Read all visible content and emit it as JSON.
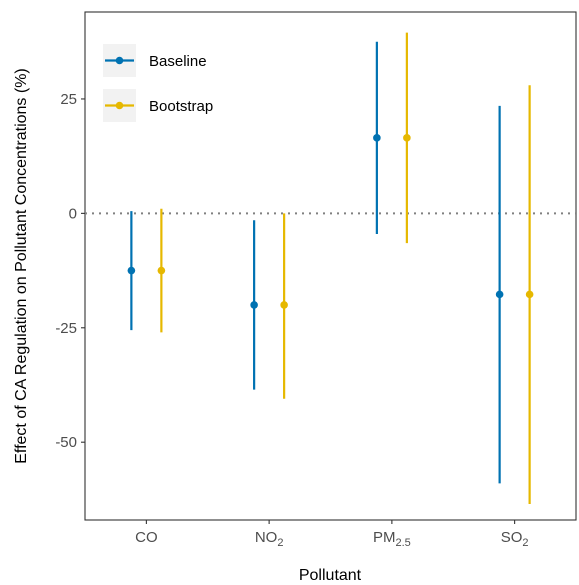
{
  "chart_data": {
    "type": "scatter",
    "subtype": "point-range",
    "title": "",
    "xlabel": "Pollutant",
    "ylabel": "Effect of CA Regulation on Pollutant Concentrations (%)",
    "categories": [
      {
        "base": "CO",
        "sub": ""
      },
      {
        "base": "NO",
        "sub": "2"
      },
      {
        "base": "PM",
        "sub": "2.5"
      },
      {
        "base": "SO",
        "sub": "2"
      }
    ],
    "yticks": [
      "25",
      "0",
      "-25",
      "-50"
    ],
    "ylim": [
      -67,
      44
    ],
    "reference_line": {
      "y": 0,
      "style": "dotted",
      "color": "#808080"
    },
    "grid": false,
    "legend_position": "top-left",
    "series": [
      {
        "name": "Baseline",
        "color": "#0072B2",
        "values": [
          -12.5,
          -20,
          16.5,
          -17.7
        ],
        "lower": [
          -25.5,
          -38.5,
          -4.5,
          -59
        ],
        "upper": [
          0.5,
          -1.5,
          37.5,
          23.5
        ]
      },
      {
        "name": "Bootstrap",
        "color": "#E6B800",
        "values": [
          -12.5,
          -20,
          16.5,
          -17.7
        ],
        "lower": [
          -26,
          -40.5,
          -6.5,
          -63.5
        ],
        "upper": [
          1,
          0,
          39.5,
          28
        ]
      }
    ]
  }
}
